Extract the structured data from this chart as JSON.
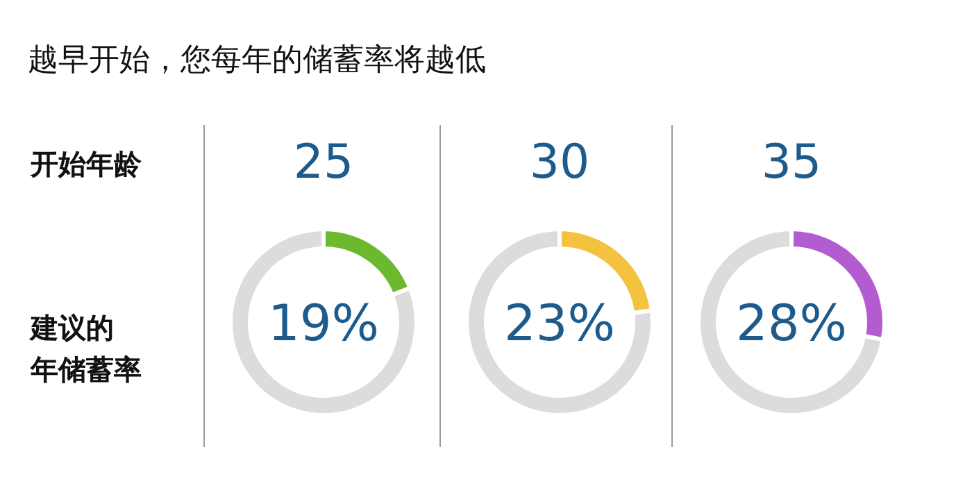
{
  "chart_data": [
    {
      "type": "other",
      "title": "越早开始，您每年的储蓄率将越低",
      "annotations": [
        "开始年龄",
        "建议的",
        "年储蓄率"
      ]
    },
    {
      "type": "donut",
      "title": "25",
      "categories": [
        null,
        null
      ],
      "values": [
        19,
        81
      ],
      "colors": [
        "#6cb82e",
        "#dcdcdc"
      ],
      "annotations": [
        "19%"
      ]
    },
    {
      "type": "donut",
      "title": "30",
      "categories": [
        null,
        null
      ],
      "values": [
        23,
        77
      ],
      "colors": [
        "#f4c23f",
        "#dcdcdc"
      ],
      "annotations": [
        "23%"
      ]
    },
    {
      "type": "donut",
      "title": "35",
      "categories": [
        null,
        null
      ],
      "values": [
        28,
        72
      ],
      "colors": [
        "#b35cd2",
        "#dcdcdc"
      ],
      "annotations": [
        "28%"
      ]
    }
  ]
}
